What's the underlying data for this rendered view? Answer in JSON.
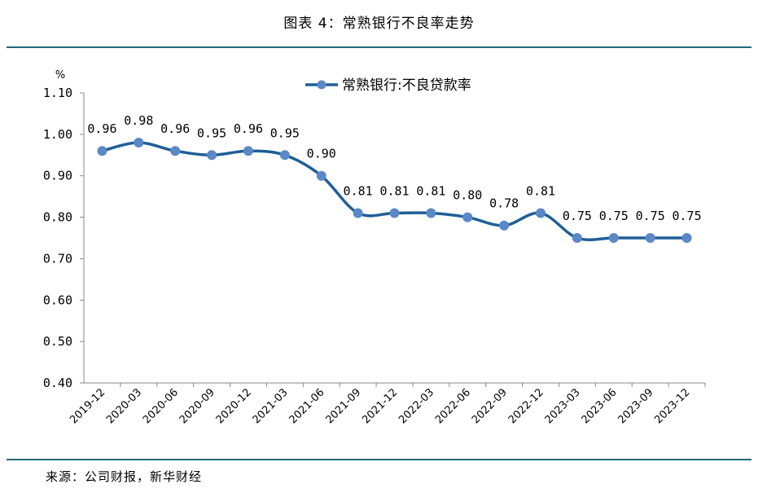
{
  "figure": {
    "title": "图表 4：常熟银行不良率走势",
    "source": "来源：公司财报，新华财经"
  },
  "chart_data": {
    "type": "line",
    "title": "",
    "ylabel": "%",
    "xlabel": "",
    "ylim": [
      0.4,
      1.1
    ],
    "yticks": [
      "0.40",
      "0.50",
      "0.60",
      "0.70",
      "0.80",
      "0.90",
      "1.00",
      "1.10"
    ],
    "legend_position": "top-center",
    "grid": false,
    "categories": [
      "2019-12",
      "2020-03",
      "2020-06",
      "2020-09",
      "2020-12",
      "2021-03",
      "2021-06",
      "2021-09",
      "2021-12",
      "2022-03",
      "2022-06",
      "2022-09",
      "2022-12",
      "2023-03",
      "2023-06",
      "2023-09",
      "2023-12"
    ],
    "series": [
      {
        "name": "常熟银行:不良贷款率",
        "values": [
          0.96,
          0.98,
          0.96,
          0.95,
          0.96,
          0.95,
          0.9,
          0.81,
          0.81,
          0.81,
          0.8,
          0.78,
          0.81,
          0.75,
          0.75,
          0.75,
          0.75
        ],
        "labels": [
          "0.96",
          "0.98",
          "0.96",
          "0.95",
          "0.96",
          "0.95",
          "0.90",
          "0.81",
          "0.81",
          "0.81",
          "0.80",
          "0.78",
          "0.81",
          "0.75",
          "0.75",
          "0.75",
          "0.75"
        ],
        "color": "#1f5f96",
        "marker_color": "#5b88c7"
      }
    ]
  }
}
